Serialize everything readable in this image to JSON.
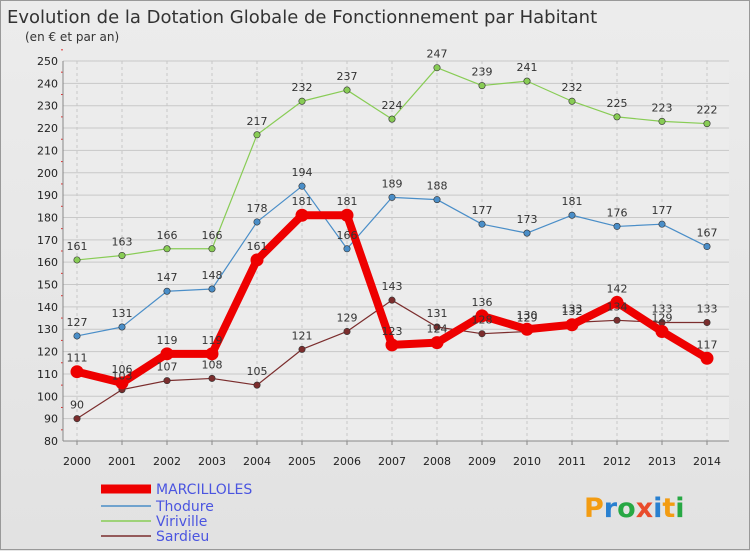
{
  "chart_data": {
    "type": "line",
    "title": "Evolution de la Dotation Globale de Fonctionnement par Habitant",
    "subtitle": "(en € et par an)",
    "x": [
      "2000",
      "2001",
      "2002",
      "2003",
      "2004",
      "2005",
      "2006",
      "2007",
      "2008",
      "2009",
      "2010",
      "2011",
      "2012",
      "2013",
      "2014"
    ],
    "ylim": [
      80,
      250
    ],
    "yticks": [
      80,
      90,
      100,
      110,
      120,
      130,
      140,
      150,
      160,
      170,
      180,
      190,
      200,
      210,
      220,
      230,
      240,
      250
    ],
    "grid": true,
    "legend_position": "bottom-left",
    "series": [
      {
        "name": "MARCILLOLES",
        "color": "#ee0000",
        "values": [
          111,
          106,
          119,
          119,
          161,
          181,
          181,
          123,
          124,
          136,
          130,
          132,
          142,
          129,
          117
        ],
        "labels": [
          "111",
          "106",
          "119",
          "119",
          "161",
          "181",
          "181",
          "123",
          "124",
          "136",
          "130",
          "132",
          "142",
          "129",
          "117"
        ]
      },
      {
        "name": "Thodure",
        "color": "#4a8ec8",
        "values": [
          127,
          131,
          147,
          148,
          178,
          194,
          166,
          189,
          188,
          177,
          173,
          181,
          176,
          177,
          167
        ],
        "labels": [
          "127",
          "131",
          "147",
          "148",
          "178",
          "194",
          "166",
          "189",
          "188",
          "177",
          "173",
          "181",
          "176",
          "177",
          "167"
        ]
      },
      {
        "name": "Viriville",
        "color": "#88cc55",
        "values": [
          161,
          163,
          166,
          166,
          217,
          232,
          237,
          224,
          247,
          239,
          241,
          232,
          225,
          223,
          222
        ],
        "labels": [
          "161",
          "163",
          "166",
          "166",
          "217",
          "232",
          "237",
          "224",
          "247",
          "239",
          "241",
          "232",
          "225",
          "223",
          "222"
        ]
      },
      {
        "name": "Sardieu",
        "color": "#7b2d2d",
        "values": [
          90,
          103,
          107,
          108,
          105,
          121,
          129,
          143,
          131,
          128,
          129,
          133,
          134,
          133,
          133
        ],
        "labels": [
          "90",
          "103",
          "107",
          "108",
          "105",
          "121",
          "129",
          "143",
          "131",
          "128",
          "129",
          "133",
          "134",
          "133",
          "133"
        ]
      }
    ]
  },
  "logo": {
    "text": "Proxiti"
  }
}
